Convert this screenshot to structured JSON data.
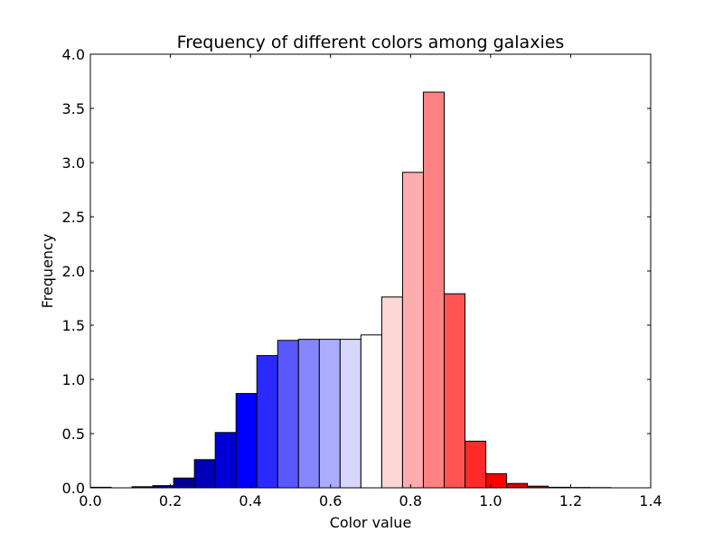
{
  "chart_data": {
    "type": "bar",
    "title": "Frequency of different colors among galaxies",
    "xlabel": "Color value",
    "ylabel": "Frequency",
    "xlim": [
      0.0,
      1.4
    ],
    "ylim": [
      0.0,
      4.0
    ],
    "xticks": [
      "0.0",
      "0.2",
      "0.4",
      "0.6",
      "0.8",
      "1.0",
      "1.2",
      "1.4"
    ],
    "yticks": [
      "0.0",
      "0.5",
      "1.0",
      "1.5",
      "2.0",
      "2.5",
      "3.0",
      "3.5",
      "4.0"
    ],
    "grid": false,
    "bins": [
      {
        "x0": 0.0,
        "x1": 0.052,
        "value": 0.005,
        "color": "#00003b"
      },
      {
        "x0": 0.052,
        "x1": 0.104,
        "value": 0.0,
        "color": "#00004d"
      },
      {
        "x0": 0.104,
        "x1": 0.156,
        "value": 0.01,
        "color": "#000066"
      },
      {
        "x0": 0.156,
        "x1": 0.208,
        "value": 0.02,
        "color": "#000080"
      },
      {
        "x0": 0.208,
        "x1": 0.26,
        "value": 0.09,
        "color": "#000099"
      },
      {
        "x0": 0.26,
        "x1": 0.312,
        "value": 0.26,
        "color": "#0000b8"
      },
      {
        "x0": 0.312,
        "x1": 0.364,
        "value": 0.51,
        "color": "#0000d6"
      },
      {
        "x0": 0.364,
        "x1": 0.416,
        "value": 0.87,
        "color": "#0000ff"
      },
      {
        "x0": 0.416,
        "x1": 0.468,
        "value": 1.22,
        "color": "#2a2aff"
      },
      {
        "x0": 0.468,
        "x1": 0.52,
        "value": 1.36,
        "color": "#5858ff"
      },
      {
        "x0": 0.52,
        "x1": 0.572,
        "value": 1.37,
        "color": "#8686ff"
      },
      {
        "x0": 0.572,
        "x1": 0.624,
        "value": 1.37,
        "color": "#acacff"
      },
      {
        "x0": 0.624,
        "x1": 0.676,
        "value": 1.37,
        "color": "#d6d6ff"
      },
      {
        "x0": 0.676,
        "x1": 0.728,
        "value": 1.41,
        "color": "#ffffff"
      },
      {
        "x0": 0.728,
        "x1": 0.78,
        "value": 1.76,
        "color": "#ffd6d6"
      },
      {
        "x0": 0.78,
        "x1": 0.832,
        "value": 2.91,
        "color": "#ffacac"
      },
      {
        "x0": 0.832,
        "x1": 0.884,
        "value": 3.65,
        "color": "#ff8282"
      },
      {
        "x0": 0.884,
        "x1": 0.936,
        "value": 1.79,
        "color": "#ff5454"
      },
      {
        "x0": 0.936,
        "x1": 0.988,
        "value": 0.43,
        "color": "#ff2a2a"
      },
      {
        "x0": 0.988,
        "x1": 1.04,
        "value": 0.13,
        "color": "#ff0000"
      },
      {
        "x0": 1.04,
        "x1": 1.092,
        "value": 0.04,
        "color": "#d60000"
      },
      {
        "x0": 1.092,
        "x1": 1.144,
        "value": 0.015,
        "color": "#b80000"
      },
      {
        "x0": 1.144,
        "x1": 1.196,
        "value": 0.005,
        "color": "#990000"
      },
      {
        "x0": 1.196,
        "x1": 1.248,
        "value": 0.003,
        "color": "#800000"
      },
      {
        "x0": 1.248,
        "x1": 1.3,
        "value": 0.002,
        "color": "#660000"
      }
    ]
  }
}
